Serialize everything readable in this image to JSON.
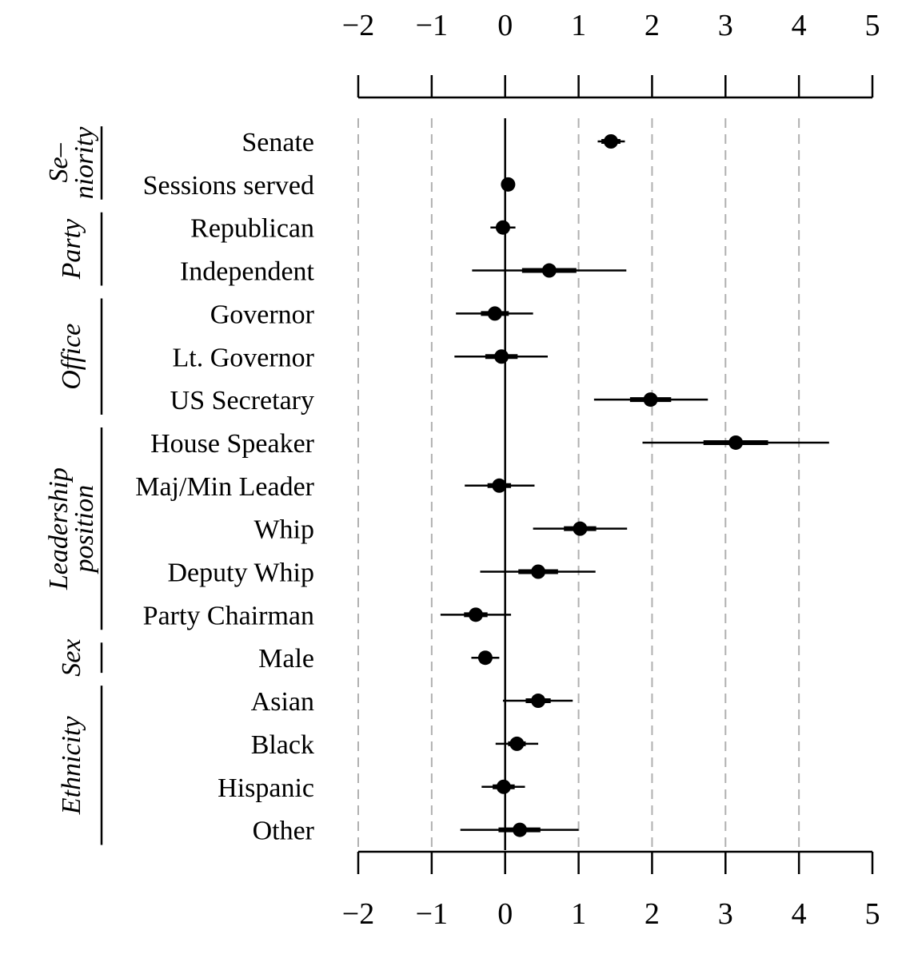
{
  "chart_data": {
    "type": "scatter",
    "title": "",
    "xlabel": "",
    "ylabel": "",
    "xlim": [
      -2,
      5
    ],
    "x_ticks": [
      -2,
      -1,
      0,
      1,
      2,
      3,
      4,
      5
    ],
    "x_tick_labels": [
      "−2",
      "−1",
      "0",
      "1",
      "2",
      "3",
      "4",
      "5"
    ],
    "reference_line": 0,
    "grid": "vertical dashed",
    "groups": [
      {
        "label": "Se– niority",
        "label_lines": [
          "Se–",
          "niority"
        ],
        "rows": [
          "Senate",
          "Sessions served"
        ]
      },
      {
        "label": "Party",
        "label_lines": [
          "Party"
        ],
        "rows": [
          "Republican",
          "Independent"
        ]
      },
      {
        "label": "Office",
        "label_lines": [
          "Office"
        ],
        "rows": [
          "Governor",
          "Lt. Governor",
          "US Secretary"
        ]
      },
      {
        "label": "Leadership position",
        "label_lines": [
          "Leadership",
          "position"
        ],
        "rows": [
          "House Speaker",
          "Maj/Min Leader",
          "Whip",
          "Deputy Whip",
          "Party Chairman"
        ]
      },
      {
        "label": "Sex",
        "label_lines": [
          "Sex"
        ],
        "rows": [
          "Male"
        ]
      },
      {
        "label": "Ethnicity",
        "label_lines": [
          "Ethnicity"
        ],
        "rows": [
          "Asian",
          "Black",
          "Hispanic",
          "Other"
        ]
      }
    ],
    "rows": [
      {
        "label": "Senate",
        "estimate": 1.44,
        "ci90": [
          1.31,
          1.57
        ],
        "ci95": [
          1.26,
          1.63
        ]
      },
      {
        "label": "Sessions served",
        "estimate": 0.04,
        "ci90": [
          0.02,
          0.06
        ],
        "ci95": [
          0.01,
          0.07
        ]
      },
      {
        "label": "Republican",
        "estimate": -0.03,
        "ci90": [
          -0.12,
          0.06
        ],
        "ci95": [
          -0.2,
          0.14
        ]
      },
      {
        "label": "Independent",
        "estimate": 0.6,
        "ci90": [
          0.23,
          0.97
        ],
        "ci95": [
          -0.45,
          1.65
        ]
      },
      {
        "label": "Governor",
        "estimate": -0.14,
        "ci90": [
          -0.33,
          0.05
        ],
        "ci95": [
          -0.67,
          0.38
        ]
      },
      {
        "label": "Lt. Governor",
        "estimate": -0.05,
        "ci90": [
          -0.27,
          0.17
        ],
        "ci95": [
          -0.69,
          0.58
        ]
      },
      {
        "label": "US Secretary",
        "estimate": 1.98,
        "ci90": [
          1.7,
          2.26
        ],
        "ci95": [
          1.21,
          2.76
        ]
      },
      {
        "label": "House Speaker",
        "estimate": 3.14,
        "ci90": [
          2.7,
          3.58
        ],
        "ci95": [
          1.87,
          4.41
        ]
      },
      {
        "label": "Maj/Min Leader",
        "estimate": -0.08,
        "ci90": [
          -0.24,
          0.08
        ],
        "ci95": [
          -0.55,
          0.4
        ]
      },
      {
        "label": "Whip",
        "estimate": 1.02,
        "ci90": [
          0.8,
          1.24
        ],
        "ci95": [
          0.38,
          1.66
        ]
      },
      {
        "label": "Deputy Whip",
        "estimate": 0.45,
        "ci90": [
          0.18,
          0.72
        ],
        "ci95": [
          -0.34,
          1.23
        ]
      },
      {
        "label": "Party Chairman",
        "estimate": -0.4,
        "ci90": [
          -0.56,
          -0.24
        ],
        "ci95": [
          -0.88,
          0.08
        ]
      },
      {
        "label": "Male",
        "estimate": -0.27,
        "ci90": [
          -0.36,
          -0.18
        ],
        "ci95": [
          -0.46,
          -0.08
        ]
      },
      {
        "label": "Asian",
        "estimate": 0.45,
        "ci90": [
          0.28,
          0.62
        ],
        "ci95": [
          -0.03,
          0.92
        ]
      },
      {
        "label": "Black",
        "estimate": 0.16,
        "ci90": [
          0.04,
          0.28
        ],
        "ci95": [
          -0.13,
          0.45
        ]
      },
      {
        "label": "Hispanic",
        "estimate": -0.02,
        "ci90": [
          -0.17,
          0.13
        ],
        "ci95": [
          -0.32,
          0.27
        ]
      },
      {
        "label": "Other",
        "estimate": 0.2,
        "ci90": [
          -0.09,
          0.48
        ],
        "ci95": [
          -0.61,
          1.0
        ]
      }
    ]
  }
}
